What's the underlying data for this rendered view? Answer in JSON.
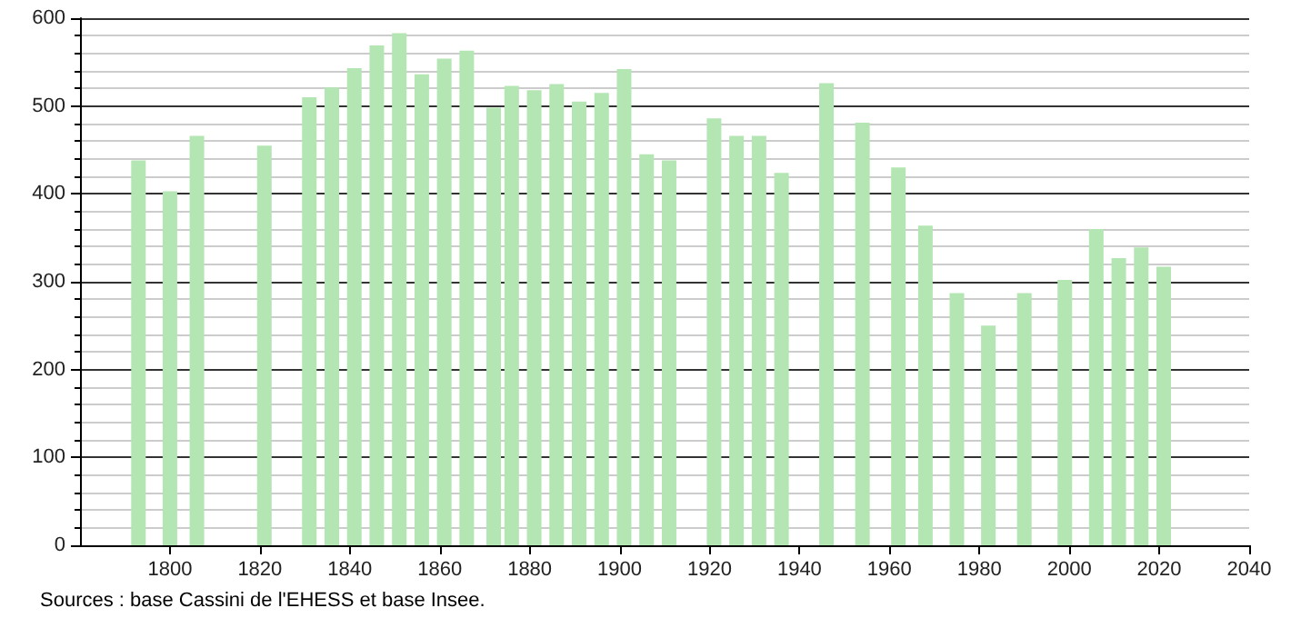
{
  "chart_data": {
    "type": "bar",
    "x": [
      1793,
      1800,
      1806,
      1821,
      1831,
      1836,
      1841,
      1846,
      1851,
      1856,
      1861,
      1866,
      1872,
      1876,
      1881,
      1886,
      1891,
      1896,
      1901,
      1906,
      1911,
      1921,
      1926,
      1931,
      1936,
      1946,
      1954,
      1962,
      1968,
      1975,
      1982,
      1990,
      1999,
      2006,
      2011,
      2016,
      2021
    ],
    "values": [
      438,
      403,
      466,
      455,
      510,
      521,
      543,
      569,
      583,
      536,
      554,
      563,
      498,
      523,
      518,
      525,
      505,
      515,
      542,
      445,
      438,
      486,
      466,
      466,
      424,
      526,
      481,
      430,
      364,
      287,
      250,
      287,
      302,
      360,
      327,
      339,
      317
    ],
    "color": "#b3e6b3",
    "xlim": [
      1780,
      2040
    ],
    "xticks": [
      1800,
      1820,
      1840,
      1860,
      1880,
      1900,
      1920,
      1940,
      1960,
      1980,
      2000,
      2020,
      2040
    ],
    "ylim": [
      0,
      600
    ],
    "yticks": [
      0,
      100,
      200,
      300,
      400,
      500,
      600
    ],
    "grid": "y",
    "annotations": [
      "Sources : base Cassini de l'EHESS et base Insee."
    ]
  }
}
